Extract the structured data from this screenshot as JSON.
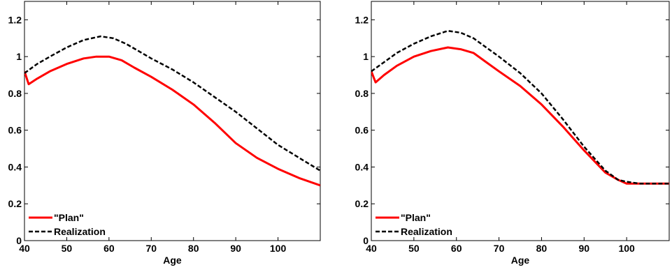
{
  "chart_data": [
    {
      "type": "line",
      "xlabel": "Age",
      "ylabel": "",
      "xlim": [
        40,
        110
      ],
      "ylim": [
        0,
        1.3
      ],
      "xticks": [
        "40",
        "50",
        "60",
        "70",
        "80",
        "90",
        "100"
      ],
      "yticks": [
        "0",
        "0.2",
        "0.4",
        "0.6",
        "0.8",
        "1",
        "1.2"
      ],
      "grid": false,
      "legend_position": "bottom-left",
      "series": [
        {
          "name": "\"Plan\"",
          "color": "#ff0000",
          "style": "solid",
          "x": [
            40,
            41,
            43,
            46,
            50,
            54,
            57,
            60,
            63,
            66,
            70,
            75,
            80,
            85,
            90,
            95,
            100,
            105,
            110
          ],
          "y": [
            0.92,
            0.85,
            0.88,
            0.92,
            0.96,
            0.99,
            1.0,
            1.0,
            0.98,
            0.94,
            0.89,
            0.82,
            0.74,
            0.64,
            0.53,
            0.45,
            0.39,
            0.34,
            0.3
          ]
        },
        {
          "name": "Realization",
          "color": "#000000",
          "style": "dashed",
          "x": [
            40,
            43,
            46,
            50,
            54,
            58,
            61,
            64,
            67,
            70,
            75,
            80,
            85,
            90,
            95,
            100,
            105,
            110
          ],
          "y": [
            0.91,
            0.96,
            1.0,
            1.05,
            1.09,
            1.11,
            1.1,
            1.07,
            1.03,
            0.99,
            0.93,
            0.86,
            0.78,
            0.7,
            0.61,
            0.52,
            0.45,
            0.38
          ]
        }
      ]
    },
    {
      "type": "line",
      "xlabel": "Age",
      "ylabel": "",
      "xlim": [
        40,
        110
      ],
      "ylim": [
        0,
        1.3
      ],
      "xticks": [
        "40",
        "50",
        "60",
        "70",
        "80",
        "90",
        "100"
      ],
      "yticks": [
        "0",
        "0.2",
        "0.4",
        "0.6",
        "0.8",
        "1",
        "1.2"
      ],
      "grid": false,
      "legend_position": "bottom-left",
      "series": [
        {
          "name": "\"Plan\"",
          "color": "#ff0000",
          "style": "solid",
          "x": [
            40,
            41,
            43,
            46,
            50,
            54,
            58,
            61,
            64,
            67,
            70,
            75,
            80,
            85,
            90,
            95,
            98,
            100,
            103,
            106,
            110
          ],
          "y": [
            0.92,
            0.86,
            0.9,
            0.95,
            1.0,
            1.03,
            1.05,
            1.04,
            1.02,
            0.97,
            0.92,
            0.84,
            0.74,
            0.62,
            0.49,
            0.37,
            0.33,
            0.31,
            0.31,
            0.31,
            0.31
          ]
        },
        {
          "name": "Realization",
          "color": "#000000",
          "style": "dashed",
          "x": [
            40,
            43,
            46,
            50,
            54,
            58,
            61,
            64,
            67,
            70,
            75,
            80,
            85,
            90,
            95,
            98,
            100,
            103,
            106,
            110
          ],
          "y": [
            0.92,
            0.97,
            1.02,
            1.07,
            1.11,
            1.14,
            1.13,
            1.1,
            1.05,
            1.0,
            0.91,
            0.8,
            0.66,
            0.51,
            0.38,
            0.33,
            0.32,
            0.31,
            0.31,
            0.31
          ]
        }
      ]
    }
  ]
}
